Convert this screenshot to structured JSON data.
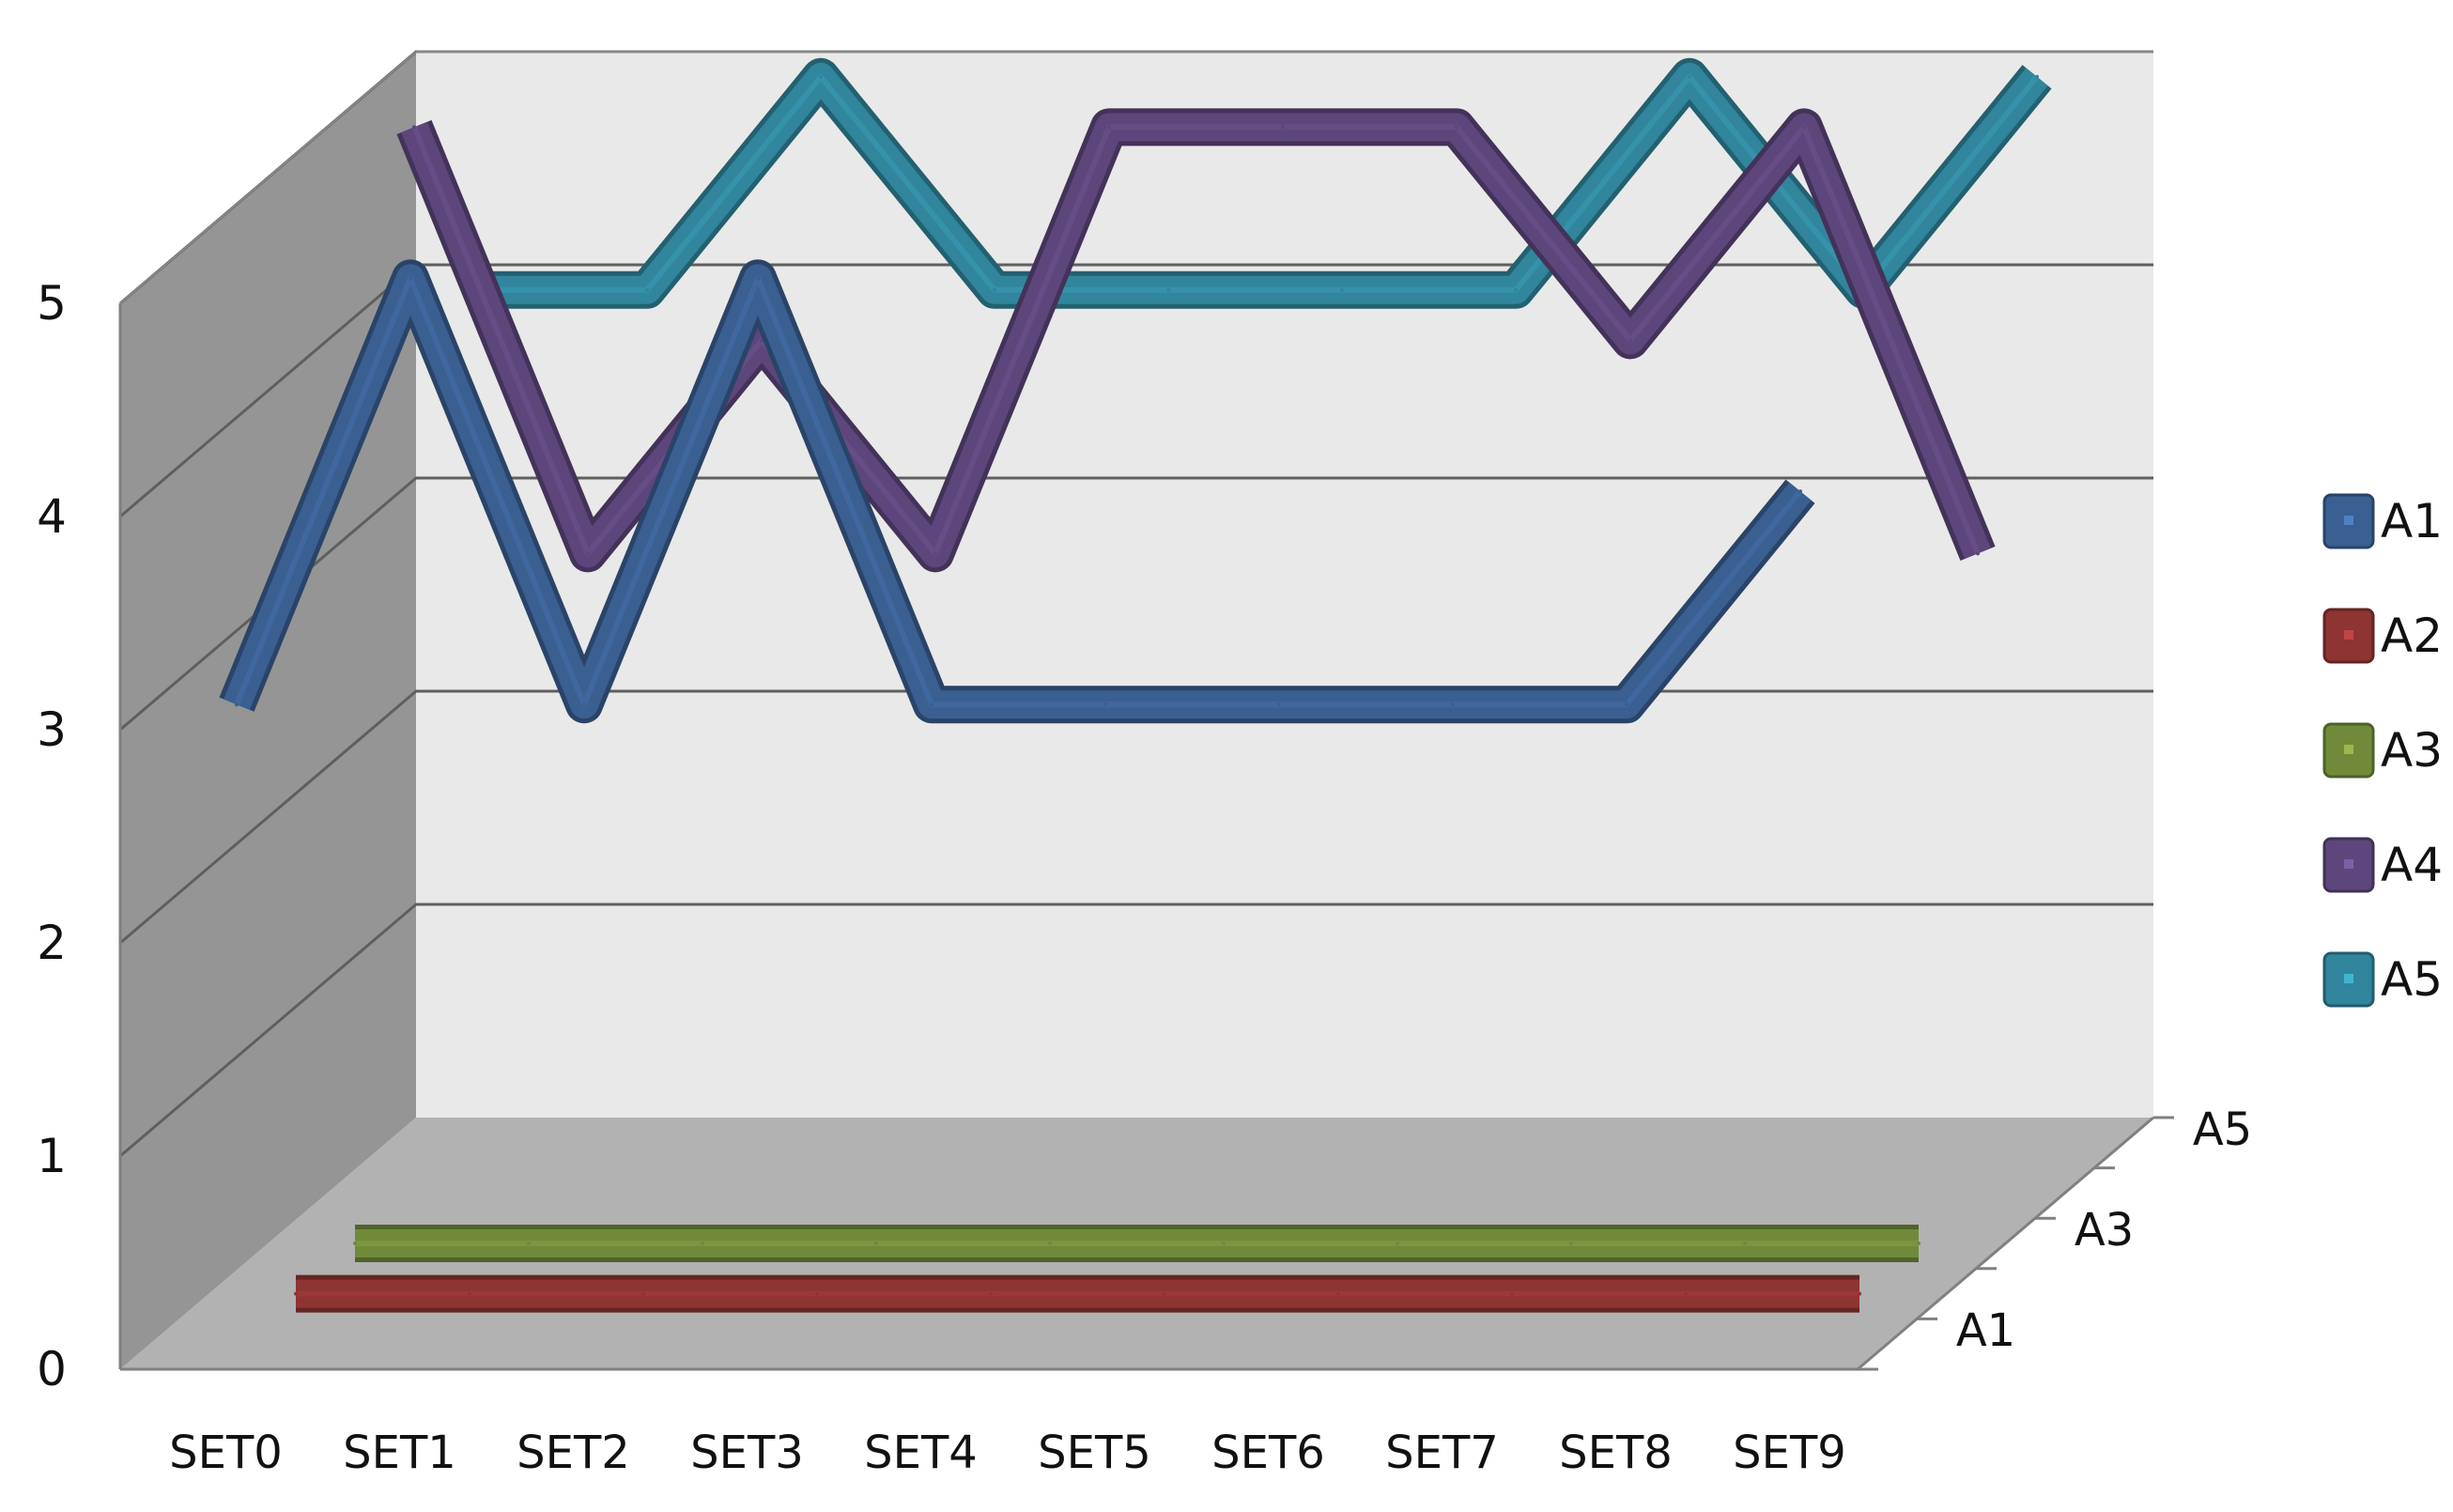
{
  "chart_data": {
    "type": "line",
    "categories": [
      "SET0",
      "SET1",
      "SET2",
      "SET3",
      "SET4",
      "SET5",
      "SET6",
      "SET7",
      "SET8",
      "SET9"
    ],
    "depth_categories": [
      "A1",
      "A2",
      "A3",
      "A4",
      "A5"
    ],
    "depth_axis_labels": [
      "A1",
      "A3",
      "A5"
    ],
    "ylim": [
      0,
      5
    ],
    "yticks": [
      0,
      1,
      2,
      3,
      4,
      5
    ],
    "series": [
      {
        "name": "A1",
        "color": "#3a5f91",
        "values": [
          3,
          5,
          3,
          5,
          3,
          3,
          3,
          3,
          3,
          4
        ]
      },
      {
        "name": "A2",
        "color": "#8e3432",
        "values": [
          0,
          0,
          0,
          0,
          0,
          0,
          0,
          0,
          0,
          0
        ]
      },
      {
        "name": "A3",
        "color": "#708a3a",
        "values": [
          0,
          0,
          0,
          0,
          0,
          0,
          0,
          0,
          0,
          0
        ]
      },
      {
        "name": "A4",
        "color": "#5d467b",
        "values": [
          5,
          3,
          4,
          3,
          5,
          5,
          5,
          4,
          5,
          3
        ]
      },
      {
        "name": "A5",
        "color": "#31859c",
        "values": [
          4,
          4,
          5,
          4,
          4,
          4,
          4,
          5,
          4,
          5
        ]
      }
    ],
    "legend_position": "right",
    "grid": true
  }
}
